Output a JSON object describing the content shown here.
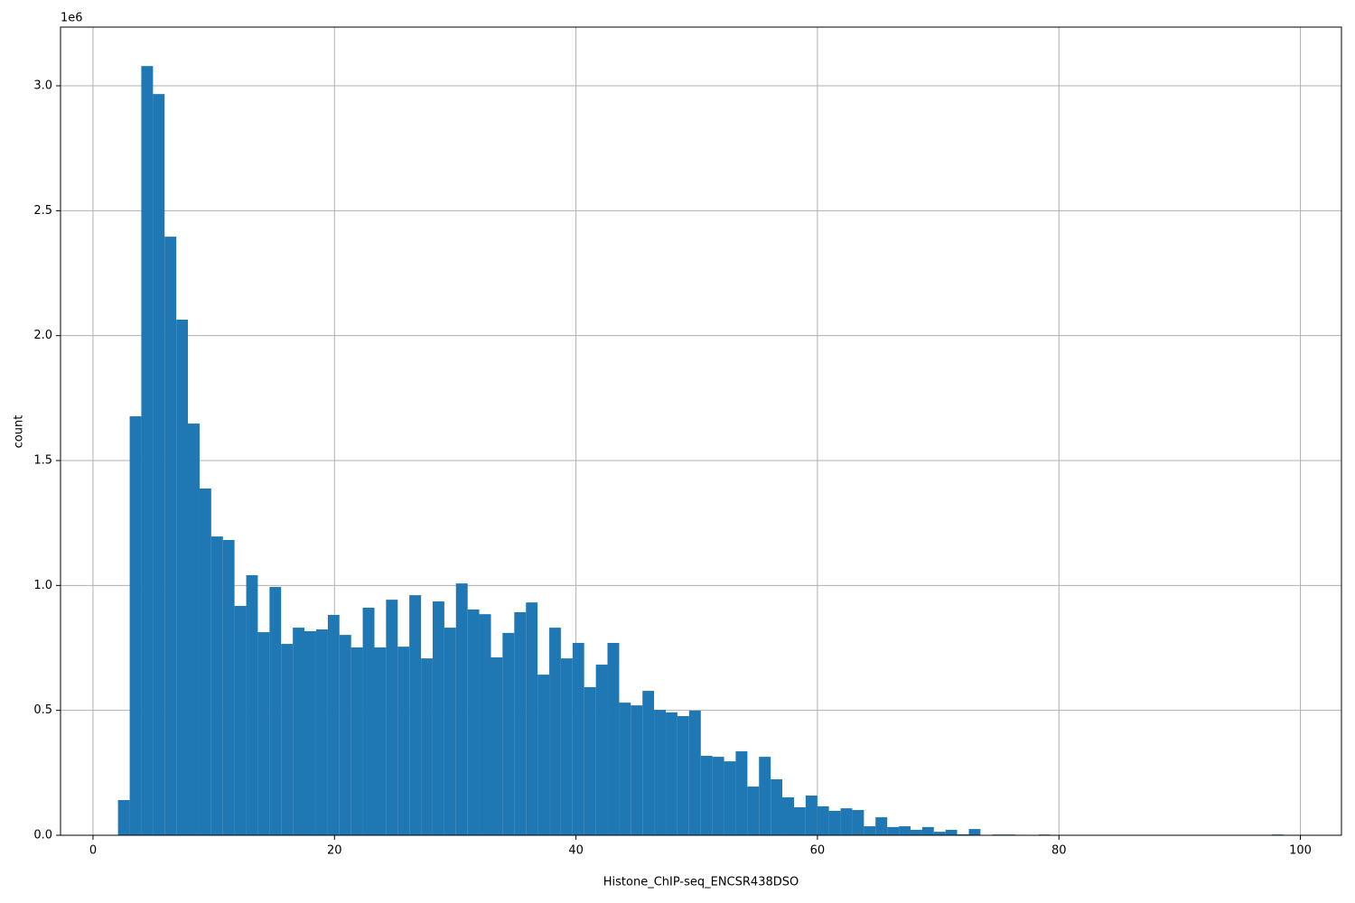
{
  "chart_data": {
    "type": "histogram",
    "xlabel": "Histone_ChIP-seq_ENCSR438DSO",
    "ylabel": "count",
    "y_offset_label": "1e6",
    "color": "#1f77b4",
    "grid": true,
    "bins": [
      2.07,
      3.04,
      4.0,
      4.97,
      5.93,
      6.9,
      7.86,
      8.83,
      9.79,
      10.76,
      11.72,
      12.69,
      13.65,
      14.62,
      15.58,
      16.55,
      17.51,
      18.48,
      19.45,
      20.41,
      21.38,
      22.34,
      23.31,
      24.27,
      25.24,
      26.2,
      27.17,
      28.13,
      29.1,
      30.06,
      31.03,
      31.99,
      32.96,
      33.92,
      34.89,
      35.86,
      36.82,
      37.79,
      38.75,
      39.72,
      40.68,
      41.65,
      42.61,
      43.58,
      44.54,
      45.51,
      46.47,
      47.44,
      48.4,
      49.37,
      50.34,
      51.3,
      52.27,
      53.23,
      54.2,
      55.16,
      56.13,
      57.09,
      58.06,
      59.02,
      59.99,
      60.95,
      61.92,
      62.88,
      63.85,
      64.81,
      65.78,
      66.75,
      67.71,
      68.68,
      69.64,
      70.61,
      71.57,
      72.54,
      73.5,
      74.47,
      75.43,
      76.4,
      77.36,
      78.33,
      79.29,
      80.26,
      81.23,
      82.19,
      83.16,
      84.12,
      85.09,
      86.05,
      87.02,
      87.98,
      88.95,
      89.91,
      90.88,
      91.84,
      92.81,
      93.77,
      94.74,
      95.71,
      96.67,
      97.64,
      98.6
    ],
    "values": [
      141000,
      1677000,
      3079000,
      2967000,
      2396000,
      2064000,
      1648000,
      1388000,
      1196000,
      1182000,
      918000,
      1041000,
      813000,
      994000,
      766000,
      831000,
      817000,
      824000,
      882000,
      802000,
      752000,
      911000,
      752000,
      943000,
      755000,
      961000,
      708000,
      936000,
      831000,
      1008000,
      904000,
      885000,
      712000,
      810000,
      893000,
      932000,
      643000,
      831000,
      708000,
      770000,
      593000,
      683000,
      770000,
      531000,
      520000,
      578000,
      502000,
      492000,
      477000,
      499000,
      318000,
      314000,
      296000,
      336000,
      195000,
      314000,
      224000,
      152000,
      112000,
      159000,
      116000,
      98000,
      108000,
      101000,
      36000,
      72000,
      33000,
      36000,
      22000,
      33000,
      14000,
      22000,
      4000,
      25000,
      0,
      3000,
      3000,
      2000,
      0,
      3000,
      0,
      0,
      0,
      0,
      0,
      0,
      0,
      0,
      0,
      0,
      0,
      0,
      0,
      0,
      0,
      0,
      0,
      0,
      0,
      3000
    ],
    "xlim": [
      -2.69,
      103.4
    ],
    "ylim": [
      0,
      3235000
    ],
    "xticks": [
      0,
      20,
      40,
      60,
      80,
      100
    ],
    "yticks": [
      {
        "value": 0,
        "label": "0.0"
      },
      {
        "value": 500000,
        "label": "0.5"
      },
      {
        "value": 1000000,
        "label": "1.0"
      },
      {
        "value": 1500000,
        "label": "1.5"
      },
      {
        "value": 2000000,
        "label": "2.0"
      },
      {
        "value": 2500000,
        "label": "2.5"
      },
      {
        "value": 3000000,
        "label": "3.0"
      }
    ]
  }
}
